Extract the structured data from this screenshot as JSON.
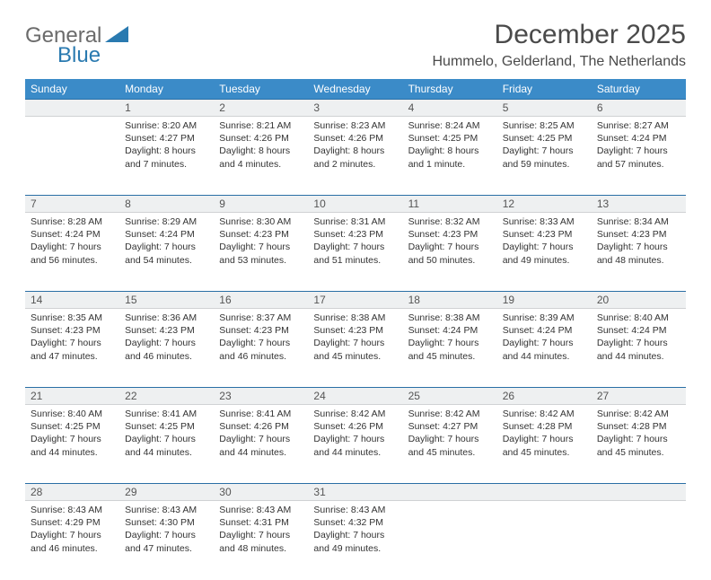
{
  "logo": {
    "text1": "General",
    "text2": "Blue"
  },
  "title": "December 2025",
  "location": "Hummelo, Gelderland, The Netherlands",
  "colors": {
    "header_bg": "#3b8bc8",
    "header_text": "#ffffff",
    "daynum_bg": "#eef0f1",
    "border_top": "#2a6fa5",
    "logo_gray": "#6b6b6b",
    "logo_blue": "#2a7ab0"
  },
  "day_names": [
    "Sunday",
    "Monday",
    "Tuesday",
    "Wednesday",
    "Thursday",
    "Friday",
    "Saturday"
  ],
  "weeks": [
    [
      {
        "n": "",
        "sr": "",
        "ss": "",
        "dl": ""
      },
      {
        "n": "1",
        "sr": "8:20 AM",
        "ss": "4:27 PM",
        "dl": "8 hours and 7 minutes."
      },
      {
        "n": "2",
        "sr": "8:21 AM",
        "ss": "4:26 PM",
        "dl": "8 hours and 4 minutes."
      },
      {
        "n": "3",
        "sr": "8:23 AM",
        "ss": "4:26 PM",
        "dl": "8 hours and 2 minutes."
      },
      {
        "n": "4",
        "sr": "8:24 AM",
        "ss": "4:25 PM",
        "dl": "8 hours and 1 minute."
      },
      {
        "n": "5",
        "sr": "8:25 AM",
        "ss": "4:25 PM",
        "dl": "7 hours and 59 minutes."
      },
      {
        "n": "6",
        "sr": "8:27 AM",
        "ss": "4:24 PM",
        "dl": "7 hours and 57 minutes."
      }
    ],
    [
      {
        "n": "7",
        "sr": "8:28 AM",
        "ss": "4:24 PM",
        "dl": "7 hours and 56 minutes."
      },
      {
        "n": "8",
        "sr": "8:29 AM",
        "ss": "4:24 PM",
        "dl": "7 hours and 54 minutes."
      },
      {
        "n": "9",
        "sr": "8:30 AM",
        "ss": "4:23 PM",
        "dl": "7 hours and 53 minutes."
      },
      {
        "n": "10",
        "sr": "8:31 AM",
        "ss": "4:23 PM",
        "dl": "7 hours and 51 minutes."
      },
      {
        "n": "11",
        "sr": "8:32 AM",
        "ss": "4:23 PM",
        "dl": "7 hours and 50 minutes."
      },
      {
        "n": "12",
        "sr": "8:33 AM",
        "ss": "4:23 PM",
        "dl": "7 hours and 49 minutes."
      },
      {
        "n": "13",
        "sr": "8:34 AM",
        "ss": "4:23 PM",
        "dl": "7 hours and 48 minutes."
      }
    ],
    [
      {
        "n": "14",
        "sr": "8:35 AM",
        "ss": "4:23 PM",
        "dl": "7 hours and 47 minutes."
      },
      {
        "n": "15",
        "sr": "8:36 AM",
        "ss": "4:23 PM",
        "dl": "7 hours and 46 minutes."
      },
      {
        "n": "16",
        "sr": "8:37 AM",
        "ss": "4:23 PM",
        "dl": "7 hours and 46 minutes."
      },
      {
        "n": "17",
        "sr": "8:38 AM",
        "ss": "4:23 PM",
        "dl": "7 hours and 45 minutes."
      },
      {
        "n": "18",
        "sr": "8:38 AM",
        "ss": "4:24 PM",
        "dl": "7 hours and 45 minutes."
      },
      {
        "n": "19",
        "sr": "8:39 AM",
        "ss": "4:24 PM",
        "dl": "7 hours and 44 minutes."
      },
      {
        "n": "20",
        "sr": "8:40 AM",
        "ss": "4:24 PM",
        "dl": "7 hours and 44 minutes."
      }
    ],
    [
      {
        "n": "21",
        "sr": "8:40 AM",
        "ss": "4:25 PM",
        "dl": "7 hours and 44 minutes."
      },
      {
        "n": "22",
        "sr": "8:41 AM",
        "ss": "4:25 PM",
        "dl": "7 hours and 44 minutes."
      },
      {
        "n": "23",
        "sr": "8:41 AM",
        "ss": "4:26 PM",
        "dl": "7 hours and 44 minutes."
      },
      {
        "n": "24",
        "sr": "8:42 AM",
        "ss": "4:26 PM",
        "dl": "7 hours and 44 minutes."
      },
      {
        "n": "25",
        "sr": "8:42 AM",
        "ss": "4:27 PM",
        "dl": "7 hours and 45 minutes."
      },
      {
        "n": "26",
        "sr": "8:42 AM",
        "ss": "4:28 PM",
        "dl": "7 hours and 45 minutes."
      },
      {
        "n": "27",
        "sr": "8:42 AM",
        "ss": "4:28 PM",
        "dl": "7 hours and 45 minutes."
      }
    ],
    [
      {
        "n": "28",
        "sr": "8:43 AM",
        "ss": "4:29 PM",
        "dl": "7 hours and 46 minutes."
      },
      {
        "n": "29",
        "sr": "8:43 AM",
        "ss": "4:30 PM",
        "dl": "7 hours and 47 minutes."
      },
      {
        "n": "30",
        "sr": "8:43 AM",
        "ss": "4:31 PM",
        "dl": "7 hours and 48 minutes."
      },
      {
        "n": "31",
        "sr": "8:43 AM",
        "ss": "4:32 PM",
        "dl": "7 hours and 49 minutes."
      },
      {
        "n": "",
        "sr": "",
        "ss": "",
        "dl": ""
      },
      {
        "n": "",
        "sr": "",
        "ss": "",
        "dl": ""
      },
      {
        "n": "",
        "sr": "",
        "ss": "",
        "dl": ""
      }
    ]
  ],
  "labels": {
    "sunrise": "Sunrise:",
    "sunset": "Sunset:",
    "daylight": "Daylight:"
  }
}
